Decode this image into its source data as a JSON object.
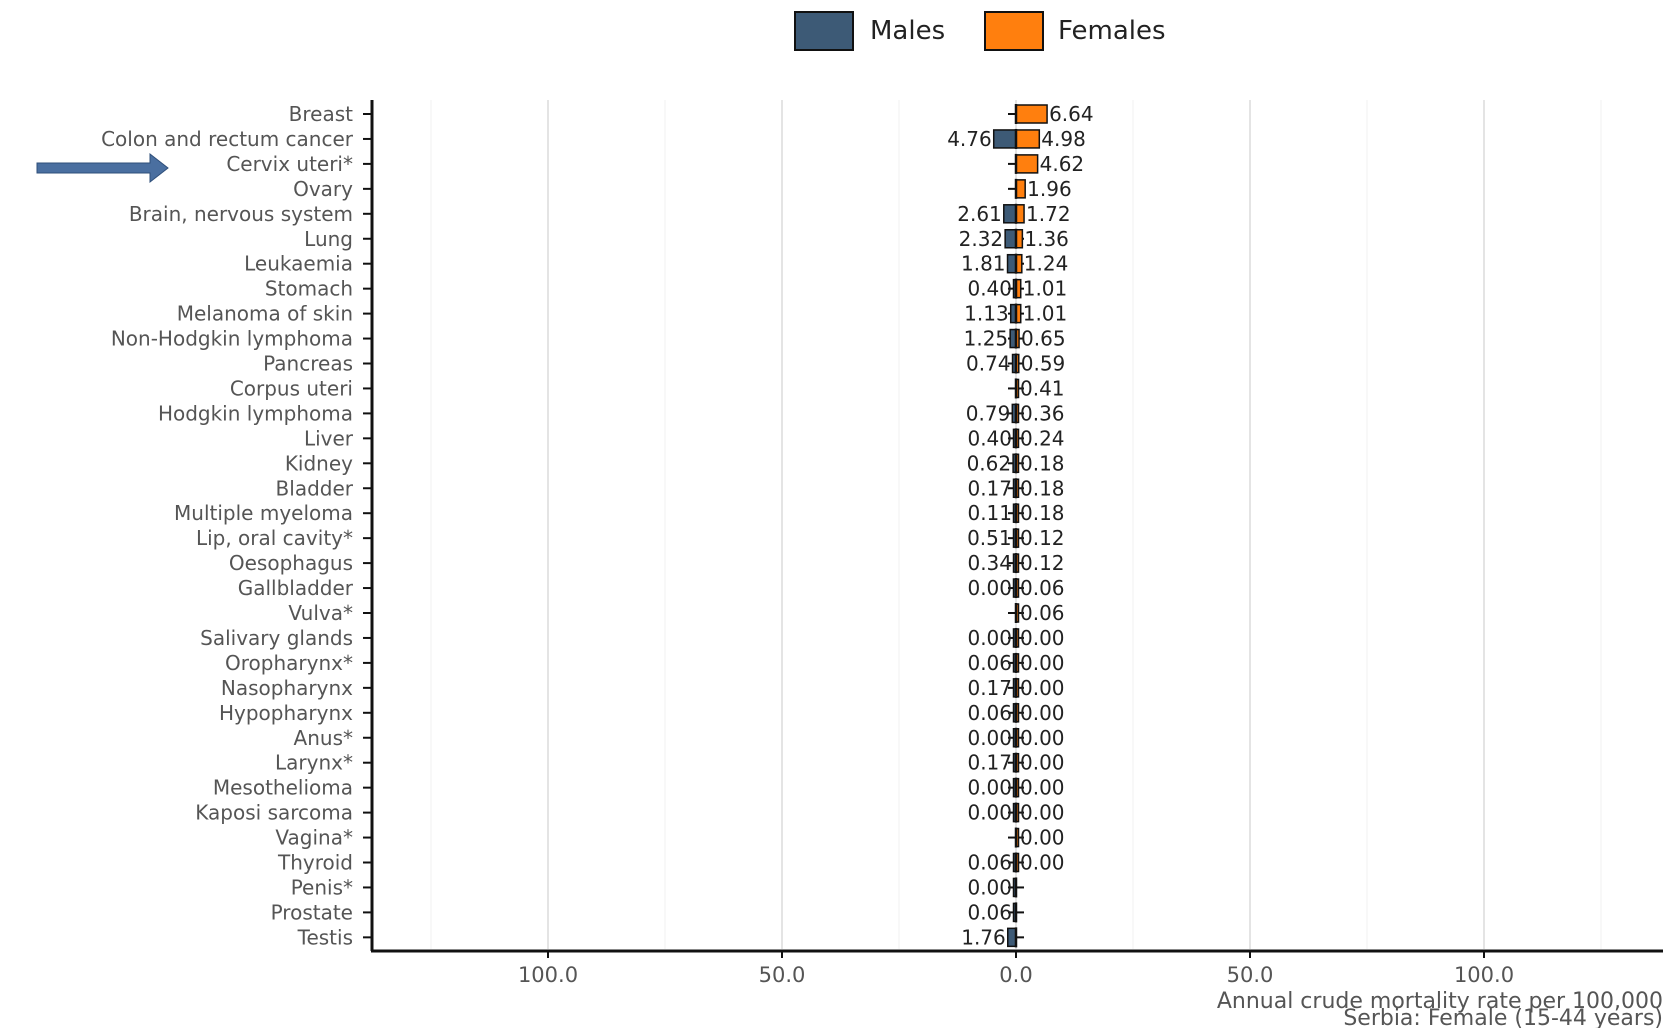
{
  "chart_data": {
    "type": "bar",
    "orientation": "horizontal-butterfly",
    "legend": {
      "position": "top",
      "items": [
        {
          "label": "Males",
          "color": "#3d5a76"
        },
        {
          "label": "Females",
          "color": "#ff7f0e"
        }
      ]
    },
    "categories": [
      "Breast",
      "Colon and rectum cancer",
      "Cervix uteri*",
      "Ovary",
      "Brain, nervous system",
      "Lung",
      "Leukaemia",
      "Stomach",
      "Melanoma of skin",
      "Non-Hodgkin lymphoma",
      "Pancreas",
      "Corpus uteri",
      "Hodgkin lymphoma",
      "Liver",
      "Kidney",
      "Bladder",
      "Multiple myeloma",
      "Lip, oral cavity*",
      "Oesophagus",
      "Gallbladder",
      "Vulva*",
      "Salivary glands",
      "Oropharynx*",
      "Nasopharynx",
      "Hypopharynx",
      "Anus*",
      "Larynx*",
      "Mesothelioma",
      "Kaposi sarcoma",
      "Vagina*",
      "Thyroid",
      "Penis*",
      "Prostate",
      "Testis"
    ],
    "series": [
      {
        "name": "Males",
        "values": [
          null,
          4.76,
          null,
          null,
          2.61,
          2.32,
          1.81,
          0.4,
          1.13,
          1.25,
          0.74,
          null,
          0.79,
          0.4,
          0.62,
          0.17,
          0.11,
          0.51,
          0.34,
          0.0,
          null,
          0.0,
          0.06,
          0.17,
          0.06,
          0.0,
          0.17,
          0.0,
          0.0,
          null,
          0.06,
          0.0,
          0.06,
          1.76
        ],
        "labels": [
          "",
          "4.76",
          "",
          "",
          "2.61",
          "2.32",
          "1.81",
          "0.40",
          "1.13",
          "1.25",
          "0.74",
          "",
          "0.79",
          "0.40",
          "0.62",
          "0.17",
          "0.11",
          "0.51",
          "0.34",
          "0.00",
          "",
          "0.00",
          "0.06",
          "0.17",
          "0.06",
          "0.00",
          "0.17",
          "0.00",
          "0.00",
          "",
          "0.06",
          "0.00",
          "0.06",
          "1.76"
        ]
      },
      {
        "name": "Females",
        "values": [
          6.64,
          4.98,
          4.62,
          1.96,
          1.72,
          1.36,
          1.24,
          1.01,
          1.01,
          0.65,
          0.59,
          0.41,
          0.36,
          0.24,
          0.18,
          0.18,
          0.18,
          0.12,
          0.12,
          0.06,
          0.06,
          0.0,
          0.0,
          0.0,
          0.0,
          0.0,
          0.0,
          0.0,
          0.0,
          0.0,
          0.0,
          null,
          null,
          null
        ],
        "labels": [
          "6.64",
          "4.98",
          "4.62",
          "1.96",
          "1.72",
          "1.36",
          "1.24",
          "1.01",
          "1.01",
          "0.65",
          "0.59",
          "0.41",
          "0.36",
          "0.24",
          "0.18",
          "0.18",
          "0.18",
          "0.12",
          "0.12",
          "0.06",
          "0.06",
          "0.00",
          "0.00",
          "0.00",
          "0.00",
          "0.00",
          "0.00",
          "0.00",
          "0.00",
          "0.00",
          "0.00",
          "",
          "",
          ""
        ]
      }
    ],
    "x_ticks": [
      "100.0",
      "50.0",
      "0.0",
      "50.0",
      "100.0"
    ],
    "x_tick_values": [
      -100,
      -50,
      0,
      50,
      100
    ],
    "xlim": [
      -138,
      138
    ],
    "xlabel": "Annual crude mortality rate per 100,000",
    "subtitle": "Serbia: Female (15-44 years)",
    "highlight": {
      "category": "Cervix uteri*",
      "marker": "arrow",
      "color": "#4a6fa0"
    },
    "grid": "vertical"
  }
}
